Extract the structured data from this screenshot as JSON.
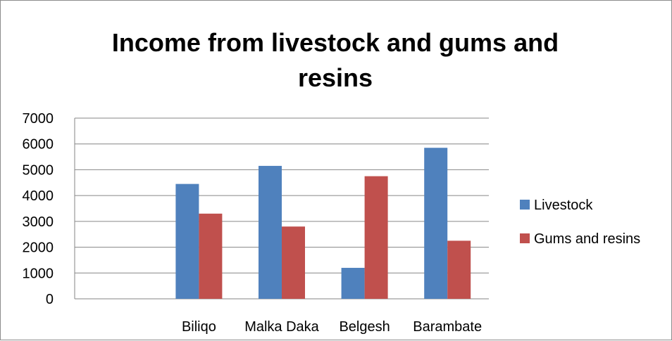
{
  "chart_data": {
    "type": "bar",
    "title": "Income from livestock and gums and resins",
    "title_lines": [
      "Income from livestock and gums and",
      "resins"
    ],
    "categories": [
      "",
      "Biliqo",
      "Malka Daka",
      "Belgesh",
      "Barambate"
    ],
    "series": [
      {
        "name": "Livestock",
        "color": "#4f81bd",
        "values": [
          null,
          4450,
          5150,
          1200,
          5850
        ]
      },
      {
        "name": "Gums and resins",
        "color": "#c0504d",
        "values": [
          null,
          3300,
          2800,
          4750,
          2250
        ]
      }
    ],
    "ylim": [
      0,
      7000
    ],
    "yticks": [
      0,
      1000,
      2000,
      3000,
      4000,
      5000,
      6000,
      7000
    ],
    "grid": true,
    "legend_position": "right"
  }
}
